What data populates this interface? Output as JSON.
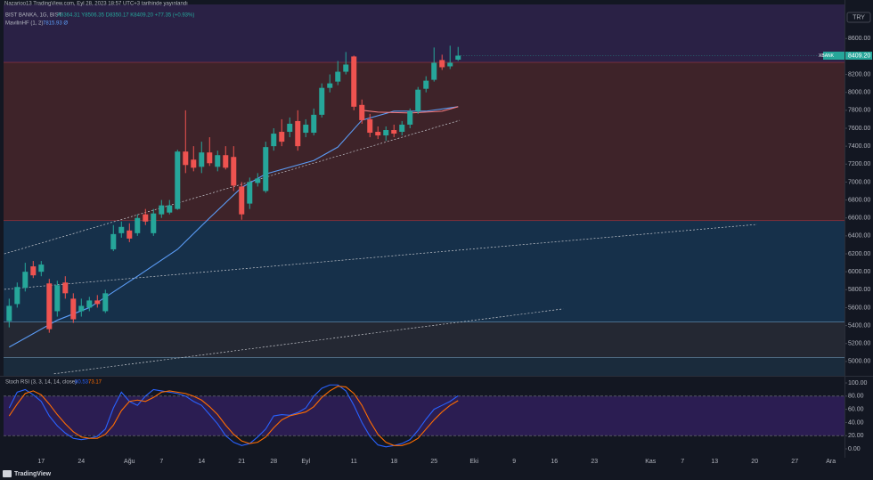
{
  "header": {
    "published": "Nazarioo13 TradingView.com, Eyl 28, 2023 18:57 UTC+3 tarihinde yayınlandı",
    "symbol": "BIST BANKA, 1G, BIST",
    "ohlc": "A8364.31 Y8506.35 D8350.17 K8409.20 +77.35 (+0.93%)",
    "indicator": "MavilinHF (1, 2)",
    "indicator_value": "7815.93 Ø",
    "currency": "TRY",
    "tag_symbol": "XBANK",
    "tag_price": "8409.20"
  },
  "footer": {
    "brand": "TradingView"
  },
  "chart_data": [
    {
      "type": "candlestick",
      "up_color": "#26a69a",
      "down_color": "#ef5350",
      "open": [
        5450,
        5640,
        5820,
        6060,
        6000,
        5870,
        5560,
        5880,
        5700,
        5560,
        5600,
        5680,
        5560,
        6250,
        6430,
        6460,
        6430,
        6640,
        6430,
        6640,
        6660,
        6700,
        7340,
        7250,
        7170,
        7330,
        7170,
        7300,
        7280,
        6950,
        6760,
        6990,
        6900,
        7400,
        7560,
        7560,
        7680,
        7550,
        7550,
        7750,
        8050,
        8120,
        8230,
        8400,
        7860,
        7700,
        7560,
        7520,
        7580,
        7560,
        7640,
        7790,
        8040,
        8140,
        8360,
        8290,
        8364.31
      ],
      "high": [
        5700,
        5880,
        6100,
        6120,
        6120,
        5920,
        5900,
        5950,
        5760,
        5700,
        5720,
        5740,
        5800,
        6520,
        6560,
        6540,
        6640,
        6700,
        6700,
        6800,
        6800,
        7360,
        7800,
        7400,
        7450,
        7500,
        7350,
        7400,
        7400,
        7000,
        7050,
        7100,
        7450,
        7600,
        7700,
        7720,
        7800,
        7700,
        7820,
        8100,
        8200,
        8350,
        8450,
        8410,
        7920,
        7760,
        7620,
        7620,
        7640,
        7680,
        7820,
        8060,
        8180,
        8500,
        8420,
        8520,
        8506.35
      ],
      "low": [
        5380,
        5600,
        5780,
        5930,
        5950,
        5320,
        5500,
        5700,
        5430,
        5500,
        5560,
        5600,
        5540,
        6230,
        6380,
        6330,
        6400,
        6520,
        6400,
        6600,
        6640,
        6690,
        7100,
        7120,
        7100,
        7180,
        7120,
        7140,
        6900,
        6580,
        6700,
        6950,
        6880,
        7350,
        7400,
        7500,
        7350,
        7500,
        7520,
        7720,
        8000,
        8080,
        8200,
        7800,
        7650,
        7500,
        7480,
        7460,
        7500,
        7520,
        7600,
        7760,
        8000,
        8120,
        8250,
        8260,
        8350.17
      ],
      "close": [
        5620,
        5830,
        6000,
        5960,
        6080,
        5360,
        5850,
        5760,
        5470,
        5620,
        5680,
        5640,
        5760,
        6420,
        6500,
        6370,
        6600,
        6560,
        6650,
        6740,
        6740,
        7340,
        7190,
        7160,
        7330,
        7210,
        7300,
        7160,
        6960,
        6640,
        7000,
        7040,
        7390,
        7540,
        7450,
        7650,
        7400,
        7640,
        7750,
        8050,
        8100,
        8230,
        8310,
        7840,
        7690,
        7550,
        7520,
        7580,
        7540,
        7640,
        7790,
        8030,
        8130,
        8330,
        8280,
        8330,
        8409.2
      ],
      "xlim": [
        -0.7,
        104.2
      ],
      "xticks": [
        {
          "value": 4,
          "label": "17"
        },
        {
          "value": 9,
          "label": "24"
        },
        {
          "value": 15,
          "label": "Ağu"
        },
        {
          "value": 19,
          "label": "7"
        },
        {
          "value": 24,
          "label": "14"
        },
        {
          "value": 29,
          "label": "21"
        },
        {
          "value": 33,
          "label": "28"
        },
        {
          "value": 37,
          "label": "Eyl"
        },
        {
          "value": 43,
          "label": "11"
        },
        {
          "value": 48,
          "label": "18"
        },
        {
          "value": 53,
          "label": "25"
        },
        {
          "value": 58,
          "label": "Eki"
        },
        {
          "value": 63,
          "label": "9"
        },
        {
          "value": 68,
          "label": "16"
        },
        {
          "value": 73,
          "label": "23"
        },
        {
          "value": 80,
          "label": "Kas"
        },
        {
          "value": 84,
          "label": "7"
        },
        {
          "value": 88,
          "label": "13"
        },
        {
          "value": 93,
          "label": "20"
        },
        {
          "value": 98,
          "label": "27"
        },
        {
          "value": 102.5,
          "label": "Ara"
        }
      ],
      "ylim": [
        4840,
        8980
      ],
      "yticks": [
        {
          "value": 5000,
          "label": "5000.00"
        },
        {
          "value": 5200,
          "label": "5200.00"
        },
        {
          "value": 5400,
          "label": "5400.00"
        },
        {
          "value": 5600,
          "label": "5600.00"
        },
        {
          "value": 5800,
          "label": "5800.00"
        },
        {
          "value": 6000,
          "label": "6000.00"
        },
        {
          "value": 6200,
          "label": "6200.00"
        },
        {
          "value": 6400,
          "label": "6400.00"
        },
        {
          "value": 6600,
          "label": "6600.00"
        },
        {
          "value": 6800,
          "label": "6800.00"
        },
        {
          "value": 7000,
          "label": "7000.00"
        },
        {
          "value": 7200,
          "label": "7200.00"
        },
        {
          "value": 7400,
          "label": "7400.00"
        },
        {
          "value": 7600,
          "label": "7600.00"
        },
        {
          "value": 7800,
          "label": "7800.00"
        },
        {
          "value": 8000,
          "label": "8000.00"
        },
        {
          "value": 8200,
          "label": "8200.00"
        },
        {
          "value": 8400,
          "label": "8400.00"
        },
        {
          "value": 8600,
          "label": "8600.00"
        }
      ],
      "zones": [
        {
          "from": 8332,
          "to": 8980,
          "color": "#2a2145",
          "line": "#b03a48"
        },
        {
          "from": 6567,
          "to": 8332,
          "color": "#3e2329",
          "line": "#b03a48"
        },
        {
          "from": 5437,
          "to": 6567,
          "color": "#16304a",
          "line": "#7fb2d6"
        },
        {
          "from": 5040,
          "to": 5437,
          "color": "#242833",
          "line": "#7fb2d6"
        },
        {
          "from": 4840,
          "to": 5040,
          "color": "#1a2b3c"
        }
      ],
      "overlays": [
        {
          "color": "#5b9cf6",
          "x": [
            0,
            6,
            10,
            16,
            21,
            25,
            29,
            32,
            38,
            41,
            44,
            48,
            52,
            56
          ],
          "values": [
            5160,
            5460,
            5600,
            5950,
            6250,
            6600,
            6940,
            7090,
            7240,
            7390,
            7690,
            7790,
            7790,
            7840
          ]
        },
        {
          "color": "#f77c80",
          "x": [
            44,
            46,
            50,
            54,
            56
          ],
          "values": [
            7800,
            7780,
            7770,
            7790,
            7840
          ]
        }
      ],
      "trendlines": [
        {
          "x": [
            -0.6,
            56.2
          ],
          "values": [
            6200,
            7688
          ]
        },
        {
          "x": [
            -0.6,
            93.3
          ],
          "values": [
            5804,
            6528
          ]
        },
        {
          "x": [
            5.6,
            69.1
          ],
          "values": [
            4862,
            5586
          ]
        }
      ]
    },
    {
      "type": "line",
      "title": "Stoch RSI (3, 3, 14, 14, close)",
      "value_texts": [
        "80.53",
        "73.17"
      ],
      "series": [
        {
          "color": "#2962ff",
          "values": [
            62,
            86,
            90,
            82,
            72,
            50,
            35,
            24,
            16,
            14,
            16,
            19,
            30,
            62,
            86,
            72,
            66,
            80,
            90,
            88,
            86,
            84,
            80,
            72,
            66,
            52,
            38,
            20,
            10,
            5,
            8,
            18,
            30,
            50,
            52,
            51,
            55,
            62,
            80,
            92,
            97,
            97,
            88,
            66,
            40,
            19,
            6,
            3,
            5,
            8,
            14,
            28,
            45,
            60,
            66,
            72,
            80.53
          ]
        },
        {
          "color": "#ff6d00",
          "values": [
            50,
            68,
            84,
            88,
            82,
            68,
            52,
            38,
            26,
            18,
            16,
            16,
            22,
            36,
            58,
            72,
            74,
            72,
            78,
            86,
            88,
            86,
            84,
            80,
            74,
            64,
            52,
            36,
            22,
            12,
            8,
            10,
            18,
            32,
            44,
            50,
            53,
            56,
            64,
            78,
            88,
            95,
            94,
            84,
            66,
            42,
            22,
            10,
            5,
            5,
            9,
            16,
            30,
            44,
            56,
            66,
            73.17
          ]
        }
      ],
      "band": [
        20,
        80
      ],
      "band_color": "#2b1d52",
      "ylim": [
        -13.5,
        109.5
      ],
      "yticks": [
        {
          "value": 0,
          "label": "0.00"
        },
        {
          "value": 20,
          "label": "20.00"
        },
        {
          "value": 40,
          "label": "40.00"
        },
        {
          "value": 60,
          "label": "60.00"
        },
        {
          "value": 80,
          "label": "80.00"
        },
        {
          "value": 100,
          "label": "100.00"
        }
      ]
    }
  ]
}
